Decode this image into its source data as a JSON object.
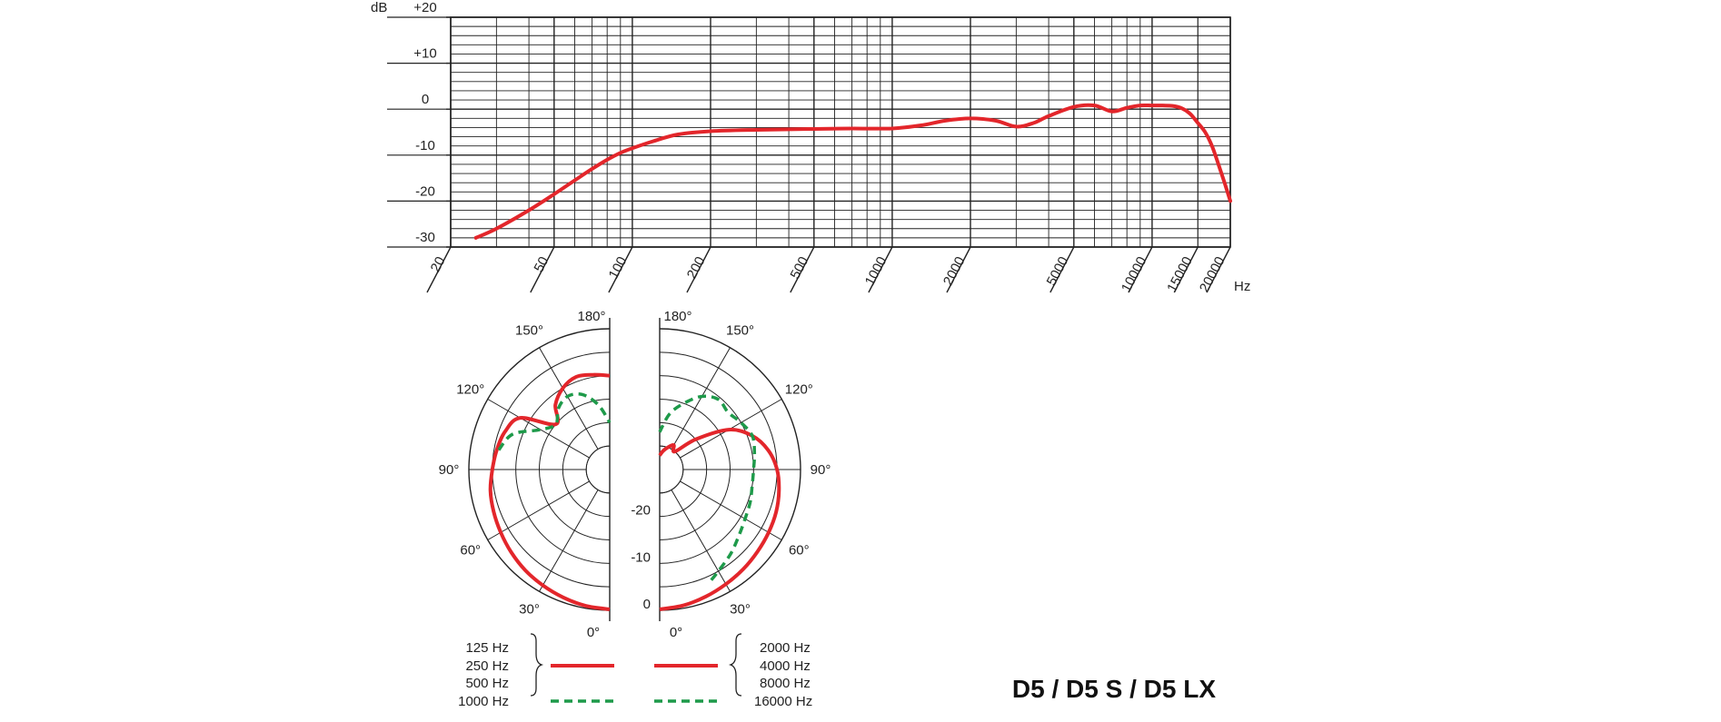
{
  "title": "D5 / D5 S / D5 LX",
  "chart_data": [
    {
      "type": "line",
      "title": "",
      "ylabel": "dB",
      "xlabel": "Hz",
      "x_scale": "log",
      "xlim": [
        20,
        20000
      ],
      "ylim": [
        -30,
        20
      ],
      "y_ticks": [
        {
          "value": 20,
          "label": "+20"
        },
        {
          "value": 10,
          "label": "+10"
        },
        {
          "value": 0,
          "label": "0"
        },
        {
          "value": -10,
          "label": "-10"
        },
        {
          "value": -20,
          "label": "-20"
        },
        {
          "value": -30,
          "label": "-30"
        }
      ],
      "x_ticks": [
        {
          "value": 20,
          "label": "20"
        },
        {
          "value": 50,
          "label": "50"
        },
        {
          "value": 100,
          "label": "100"
        },
        {
          "value": 200,
          "label": "200"
        },
        {
          "value": 500,
          "label": "500"
        },
        {
          "value": 1000,
          "label": "1000"
        },
        {
          "value": 2000,
          "label": "2000"
        },
        {
          "value": 5000,
          "label": "5000"
        },
        {
          "value": 10000,
          "label": "10000"
        },
        {
          "value": 15000,
          "label": "15000"
        },
        {
          "value": 20000,
          "label": "20000"
        }
      ],
      "grid": true,
      "series": [
        {
          "color": "#e3262b",
          "x": [
            25,
            30,
            40,
            50,
            60,
            70,
            80,
            90,
            100,
            120,
            150,
            200,
            300,
            500,
            700,
            1000,
            1300,
            1600,
            2000,
            2500,
            3000,
            3500,
            4000,
            5000,
            6000,
            7000,
            8000,
            9000,
            10000,
            11000,
            12000,
            13000,
            14000,
            15000,
            16000,
            17000,
            18000,
            19000,
            20000
          ],
          "y": [
            -28,
            -26,
            -22,
            -18.5,
            -15.5,
            -13,
            -11,
            -9.5,
            -8.5,
            -7,
            -5.5,
            -4.8,
            -4.5,
            -4.3,
            -4.2,
            -4.2,
            -3.5,
            -2.5,
            -2,
            -2.5,
            -3.8,
            -3,
            -1.5,
            0.5,
            0.8,
            -0.5,
            0.3,
            0.8,
            0.8,
            0.8,
            0.7,
            0.2,
            -1,
            -3,
            -5,
            -8,
            -12,
            -16,
            -20
          ]
        }
      ]
    },
    {
      "type": "polar",
      "title": "",
      "r_ticks": [
        {
          "value": -20,
          "label": "-20"
        },
        {
          "value": -10,
          "label": "-10"
        },
        {
          "value": 0,
          "label": "0"
        }
      ],
      "angle_labels": {
        "left": [
          "180°",
          "150°",
          "120°",
          "90°",
          "60°",
          "30°",
          "0°"
        ],
        "right": [
          "180°",
          "150°",
          "120°",
          "90°",
          "60°",
          "30°",
          "0°"
        ]
      },
      "series": [
        {
          "side": "left",
          "color": "#e3262b",
          "dash": "solid",
          "angles_deg": [
            0,
            10,
            20,
            30,
            40,
            50,
            60,
            70,
            80,
            90,
            100,
            110,
            120,
            130,
            140,
            150,
            160,
            170,
            180
          ],
          "level_db": [
            -0.2,
            -0.5,
            -1,
            -1.5,
            -2,
            -2.6,
            -3.2,
            -3.7,
            -4.2,
            -5,
            -5.6,
            -6.3,
            -8,
            -15,
            -12,
            -10,
            -9,
            -9.5,
            -10
          ]
        },
        {
          "side": "left",
          "color": "#1e9a4a",
          "dash": "dashed",
          "angles_deg": [
            100,
            110,
            120,
            130,
            140,
            150,
            160,
            170,
            180
          ],
          "level_db": [
            -6,
            -8,
            -13,
            -15,
            -13,
            -12,
            -13,
            -16,
            -20
          ]
        },
        {
          "side": "right",
          "color": "#e3262b",
          "dash": "solid",
          "angles_deg": [
            0,
            10,
            20,
            30,
            40,
            50,
            60,
            70,
            80,
            90,
            100,
            110,
            120,
            130,
            140,
            150,
            160,
            170,
            180
          ],
          "level_db": [
            -0.2,
            -0.6,
            -1.2,
            -1.8,
            -2.3,
            -2.8,
            -3.2,
            -3.6,
            -4.2,
            -5,
            -6.5,
            -9,
            -13,
            -20,
            -25,
            -24,
            -25,
            -26,
            -27
          ]
        },
        {
          "side": "right",
          "color": "#1e9a4a",
          "dash": "dashed",
          "angles_deg": [
            25,
            30,
            40,
            50,
            60,
            70,
            80,
            90,
            100,
            110,
            120,
            130,
            140,
            150,
            160,
            170,
            180
          ],
          "level_db": [
            -4,
            -5,
            -6.5,
            -8,
            -9,
            -9.5,
            -10,
            -10,
            -9.5,
            -9,
            -10,
            -11,
            -10.5,
            -12,
            -15,
            -18,
            -22
          ]
        }
      ],
      "legend": {
        "left": {
          "solid": [
            "125 Hz",
            "250 Hz",
            "500 Hz"
          ],
          "dashed": [
            "1000 Hz"
          ]
        },
        "right": {
          "solid": [
            "2000 Hz",
            "4000 Hz",
            "8000 Hz"
          ],
          "dashed": [
            "16000 Hz"
          ]
        },
        "colors": {
          "solid": "#e3262b",
          "dashed": "#1e9a4a"
        }
      }
    }
  ]
}
